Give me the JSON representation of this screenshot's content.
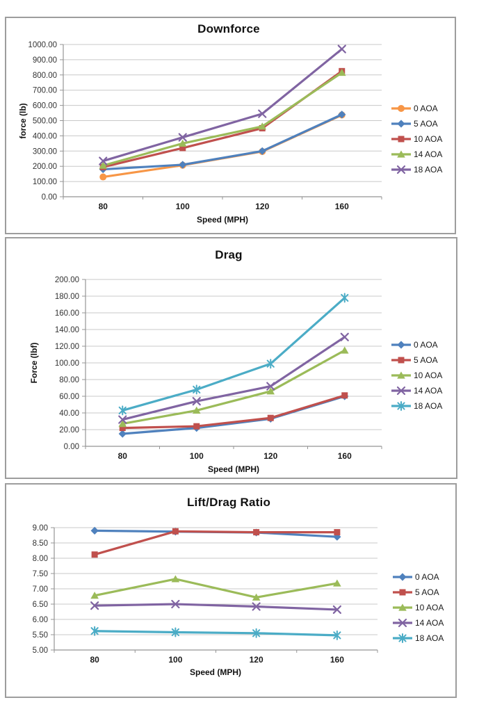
{
  "page": {
    "background_color": "#ffffff",
    "frame_border_color": "#9d9d9d"
  },
  "palette": {
    "blue": "#4F81BD",
    "red": "#C0504D",
    "green": "#9BBB59",
    "purple": "#8064A2",
    "cyan": "#4BACC6",
    "orange": "#F79646",
    "gridline": "#c8c8c8",
    "axis": "#959595",
    "tick_text": "#333333",
    "category_text": "#1a1a1a"
  },
  "chart_data": [
    {
      "type": "line",
      "title": "Downforce",
      "xlabel": "Speed (MPH)",
      "ylabel": "force (lb)",
      "categories": [
        "80",
        "100",
        "120",
        "160"
      ],
      "ylim": [
        0,
        1000
      ],
      "ystep": 100,
      "y_tick_labels": [
        "0.00",
        "100.00",
        "200.00",
        "300.00",
        "400.00",
        "500.00",
        "600.00",
        "700.00",
        "800.00",
        "900.00",
        "1000.00"
      ],
      "grid": true,
      "legend_position": "right",
      "series": [
        {
          "name": "0 AOA",
          "color": "#F79646",
          "marker": "circle",
          "values": [
            130,
            207,
            297,
            537
          ]
        },
        {
          "name": "5 AOA",
          "color": "#4F81BD",
          "marker": "diamond",
          "values": [
            180,
            210,
            300,
            540
          ]
        },
        {
          "name": "10 AOA",
          "color": "#C0504D",
          "marker": "square",
          "values": [
            195,
            320,
            450,
            825
          ]
        },
        {
          "name": "14 AOA",
          "color": "#9BBB59",
          "marker": "triangle",
          "values": [
            205,
            350,
            462,
            815
          ]
        },
        {
          "name": "18 AOA",
          "color": "#8064A2",
          "marker": "x",
          "values": [
            235,
            390,
            545,
            970
          ]
        }
      ]
    },
    {
      "type": "line",
      "title": "Drag",
      "xlabel": "Speed (MPH)",
      "ylabel": "Force (lbf)",
      "categories": [
        "80",
        "100",
        "120",
        "160"
      ],
      "ylim": [
        0,
        200
      ],
      "ystep": 20,
      "y_tick_labels": [
        "0.00",
        "20.00",
        "40.00",
        "60.00",
        "80.00",
        "100.00",
        "120.00",
        "140.00",
        "160.00",
        "180.00",
        "200.00"
      ],
      "grid": true,
      "legend_position": "right",
      "series": [
        {
          "name": "0 AOA",
          "color": "#4F81BD",
          "marker": "diamond",
          "values": [
            15,
            22,
            33,
            60
          ]
        },
        {
          "name": "5 AOA",
          "color": "#C0504D",
          "marker": "square",
          "values": [
            22,
            24,
            34,
            61
          ]
        },
        {
          "name": "10 AOA",
          "color": "#9BBB59",
          "marker": "triangle",
          "values": [
            27,
            43,
            66,
            115
          ]
        },
        {
          "name": "14 AOA",
          "color": "#8064A2",
          "marker": "x",
          "values": [
            32,
            54,
            72,
            131
          ]
        },
        {
          "name": "18 AOA",
          "color": "#4BACC6",
          "marker": "star",
          "values": [
            43,
            68,
            99,
            178
          ]
        }
      ]
    },
    {
      "type": "line",
      "title": "Lift/Drag Ratio",
      "xlabel": "Speed (MPH)",
      "ylabel": "",
      "categories": [
        "80",
        "100",
        "120",
        "160"
      ],
      "ylim": [
        5,
        9
      ],
      "ystep": 0.5,
      "y_tick_labels": [
        "5.00",
        "5.50",
        "6.00",
        "6.50",
        "7.00",
        "7.50",
        "8.00",
        "8.50",
        "9.00"
      ],
      "grid": true,
      "legend_position": "right",
      "series": [
        {
          "name": "0 AOA",
          "color": "#4F81BD",
          "marker": "diamond",
          "values": [
            8.9,
            8.87,
            8.84,
            8.7
          ]
        },
        {
          "name": "5 AOA",
          "color": "#C0504D",
          "marker": "square",
          "values": [
            8.12,
            8.88,
            8.85,
            8.85
          ]
        },
        {
          "name": "10 AOA",
          "color": "#9BBB59",
          "marker": "triangle",
          "values": [
            6.78,
            7.32,
            6.72,
            7.18
          ]
        },
        {
          "name": "14 AOA",
          "color": "#8064A2",
          "marker": "x",
          "values": [
            6.45,
            6.5,
            6.42,
            6.32
          ]
        },
        {
          "name": "18 AOA",
          "color": "#4BACC6",
          "marker": "star",
          "values": [
            5.62,
            5.58,
            5.55,
            5.48
          ]
        }
      ]
    }
  ]
}
